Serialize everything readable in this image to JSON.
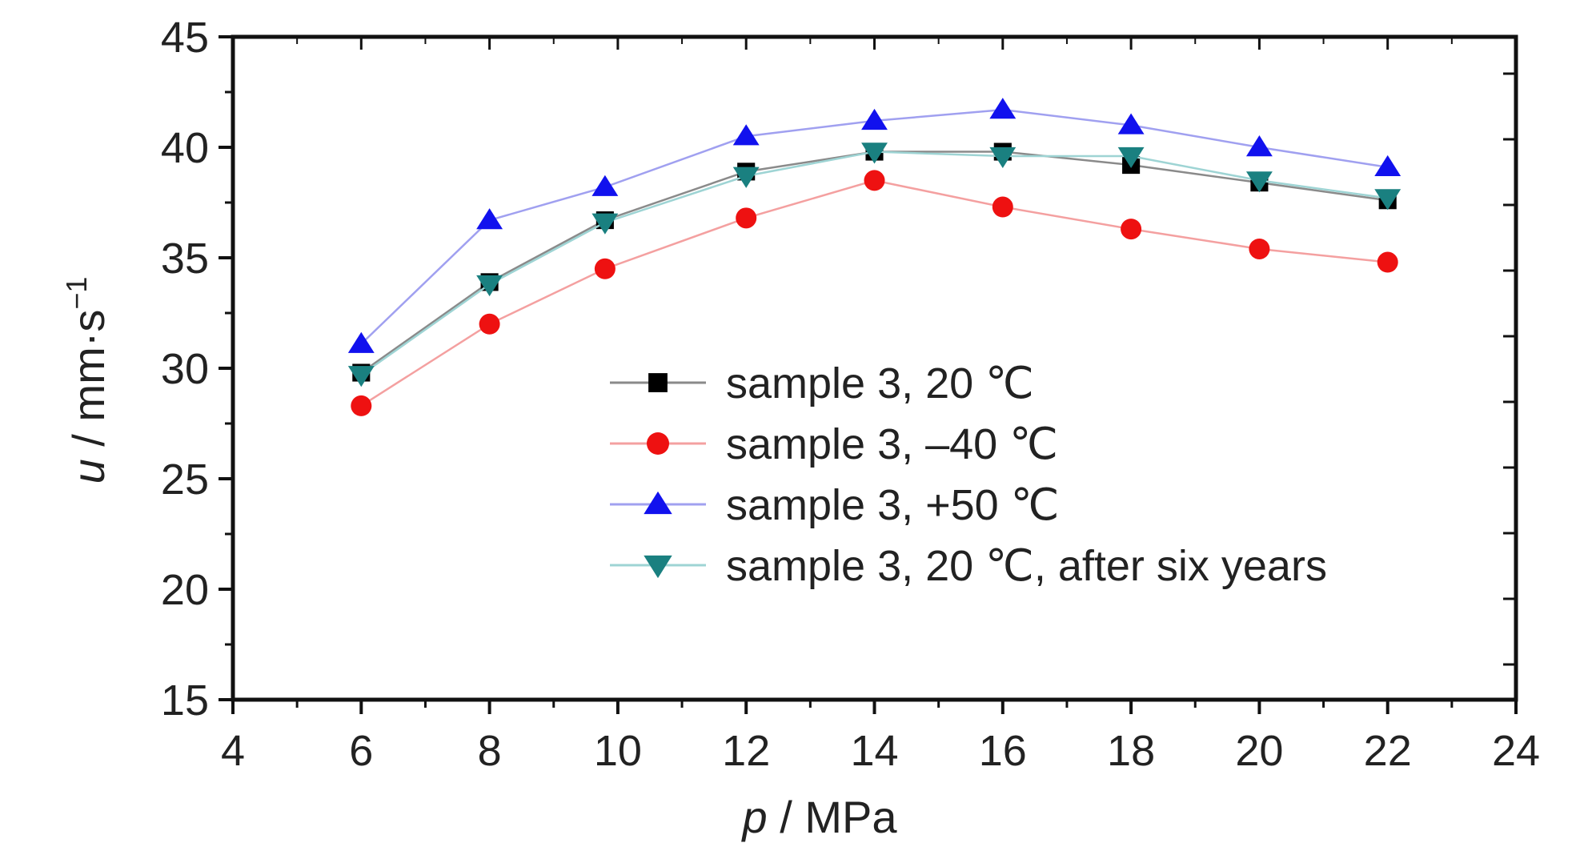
{
  "chart_data": {
    "type": "line",
    "xlabel": {
      "var": "p",
      "unit": " / MPa"
    },
    "ylabel": {
      "var": "u",
      "unit": " / mm·s",
      "exp": "−1"
    },
    "xlim": [
      4,
      24
    ],
    "ylim": [
      15,
      45
    ],
    "xticks": [
      4,
      6,
      8,
      10,
      12,
      14,
      16,
      18,
      20,
      22,
      24
    ],
    "yticks": [
      15,
      20,
      25,
      30,
      35,
      40,
      45
    ],
    "x": [
      6,
      8,
      9.8,
      12,
      14,
      16,
      18,
      20,
      22
    ],
    "grid": false,
    "legend_position": "center-right",
    "series": [
      {
        "name": "sample 3, 20 ℃",
        "marker": "square",
        "color": "#000000",
        "line_color": "#8a8a8a",
        "values": [
          29.8,
          33.9,
          36.7,
          38.9,
          39.8,
          39.8,
          39.2,
          38.4,
          37.6
        ]
      },
      {
        "name": "sample 3, –40 ℃",
        "marker": "circle",
        "color": "#ee1111",
        "line_color": "#f4a0a0",
        "values": [
          28.3,
          32.0,
          34.5,
          36.8,
          38.5,
          37.3,
          36.3,
          35.4,
          34.8
        ]
      },
      {
        "name": "sample 3, +50 ℃",
        "marker": "triangle-up",
        "color": "#1111ee",
        "line_color": "#a0a0f0",
        "values": [
          31.1,
          36.7,
          38.2,
          40.5,
          41.2,
          41.7,
          41.0,
          40.0,
          39.1
        ]
      },
      {
        "name": "sample 3, 20 ℃, after six years",
        "marker": "triangle-down",
        "color": "#1a8080",
        "line_color": "#9ed4d4",
        "values": [
          29.7,
          33.8,
          36.6,
          38.7,
          39.8,
          39.6,
          39.6,
          38.5,
          37.7
        ]
      }
    ]
  }
}
